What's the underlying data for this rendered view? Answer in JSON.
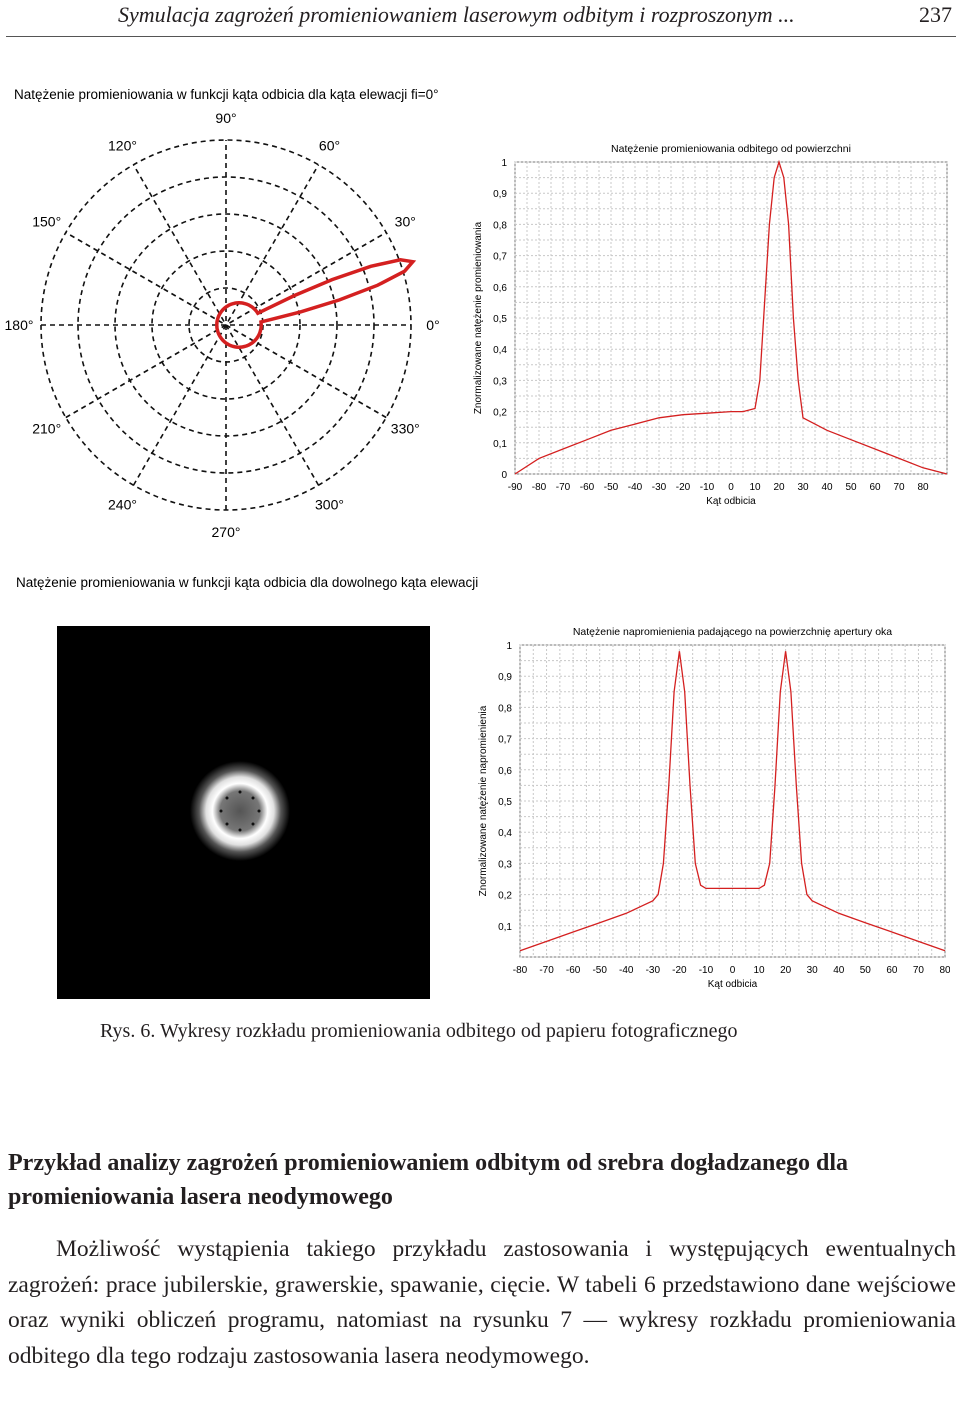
{
  "header": {
    "running_title": "Symulacja zagrożeń promieniowaniem laserowym odbitym i rozproszonym ...",
    "page_number": "237"
  },
  "figure": {
    "polar_caption": "Natężenie promieniowania w funkcji kąta odbicia dla kąta elewacji fi=0°",
    "polar_labels": [
      "90°",
      "60°",
      "30°",
      "0°",
      "330°",
      "300°",
      "270°",
      "240°",
      "210°",
      "180°",
      "150°",
      "120°"
    ],
    "elevation_caption": "Natężenie promieniowania w funkcji kąta odbicia dla dowolnego kąta elewacji",
    "caption": "Rys. 6. Wykresy rozkładu promieniowania odbitego od papieru fotograficznego"
  },
  "chart_data": [
    {
      "type": "polar",
      "angle_labels_deg": [
        90,
        60,
        30,
        0,
        330,
        300,
        270,
        240,
        210,
        180,
        150,
        120
      ],
      "description_series": "reflected intensity lobe at about 20° with small lobe near origin",
      "lobe": [
        [
          0,
          0.12
        ],
        [
          10,
          0.5
        ],
        [
          15,
          0.8
        ],
        [
          18,
          0.97
        ],
        [
          20,
          1.0
        ],
        [
          22,
          0.97
        ],
        [
          25,
          0.7
        ],
        [
          30,
          0.3
        ],
        [
          45,
          0.12
        ],
        [
          90,
          0.12
        ],
        [
          180,
          0.12
        ],
        [
          270,
          0.12
        ]
      ],
      "grid": true
    },
    {
      "type": "line",
      "title": "Natężenie promieniowania odbitego od powierzchni",
      "xlabel": "Kąt odbicia",
      "ylabel": "Znormalizowane natężenie promieniowania",
      "xticks": [
        "-90",
        "-80",
        "-70",
        "-60",
        "-50",
        "-40",
        "-30",
        "-20",
        "-10",
        "0",
        "10",
        "20",
        "30",
        "40",
        "50",
        "60",
        "70",
        "80"
      ],
      "yticks": [
        "0",
        "0,1",
        "0,2",
        "0,3",
        "0,4",
        "0,5",
        "0,6",
        "0,7",
        "0,8",
        "0,9",
        "1"
      ],
      "xlim": [
        -90,
        90
      ],
      "ylim": [
        0,
        1
      ],
      "grid": true,
      "x": [
        -90,
        -80,
        -70,
        -60,
        -50,
        -40,
        -30,
        -20,
        -10,
        0,
        5,
        10,
        12,
        14,
        16,
        18,
        20,
        22,
        24,
        26,
        28,
        30,
        40,
        50,
        60,
        70,
        80,
        90
      ],
      "y": [
        0.0,
        0.05,
        0.08,
        0.11,
        0.14,
        0.16,
        0.18,
        0.19,
        0.195,
        0.2,
        0.2,
        0.21,
        0.3,
        0.55,
        0.8,
        0.95,
        1.0,
        0.95,
        0.8,
        0.5,
        0.3,
        0.18,
        0.14,
        0.11,
        0.08,
        0.05,
        0.02,
        0.0
      ]
    },
    {
      "type": "heatmap",
      "description": "ring of intensity",
      "ring_radius_fraction": 0.06
    },
    {
      "type": "line",
      "title": "Natężenie napromienienia padającego na powierzchnię apertury oka",
      "xlabel": "Kąt odbicia",
      "ylabel": "Znormalizowane natężenie napromienienia",
      "xticks": [
        "-80",
        "-70",
        "-60",
        "-50",
        "-40",
        "-30",
        "-20",
        "-10",
        "0",
        "10",
        "20",
        "30",
        "40",
        "50",
        "60",
        "70",
        "80"
      ],
      "yticks": [
        "0,1",
        "0,2",
        "0,3",
        "0,4",
        "0,5",
        "0,6",
        "0,7",
        "0,8",
        "0,9",
        "1"
      ],
      "xlim": [
        -80,
        80
      ],
      "ylim": [
        0,
        1
      ],
      "grid": true,
      "x": [
        -80,
        -70,
        -60,
        -50,
        -40,
        -30,
        -28,
        -26,
        -24,
        -22,
        -20,
        -18,
        -16,
        -14,
        -12,
        -10,
        0,
        10,
        12,
        14,
        16,
        18,
        20,
        22,
        24,
        26,
        28,
        30,
        40,
        50,
        60,
        70,
        80
      ],
      "y": [
        0.02,
        0.05,
        0.08,
        0.11,
        0.14,
        0.18,
        0.2,
        0.3,
        0.55,
        0.85,
        0.98,
        0.85,
        0.55,
        0.3,
        0.23,
        0.22,
        0.22,
        0.22,
        0.23,
        0.3,
        0.55,
        0.85,
        0.98,
        0.85,
        0.55,
        0.3,
        0.2,
        0.18,
        0.14,
        0.11,
        0.08,
        0.05,
        0.02
      ]
    }
  ],
  "section": {
    "heading": "Przykład analizy zagrożeń promieniowaniem odbitym od srebra dogładzanego dla promieniowania lasera neodymowego",
    "paragraph": "Możliwość wystąpienia takiego przykładu zastosowania i występujących ewentualnych zagrożeń: prace jubilerskie, grawerskie, spawanie, cięcie. W tabeli 6 przedstawiono dane wejściowe oraz wyniki obliczeń programu, natomiast na rysunku 7 — wykresy rozkładu promieniowania odbitego dla tego rodzaju zastosowania lasera neodymowego."
  },
  "colors": {
    "curve": "#d42020",
    "grid": "#b0b0b0",
    "text": "#231f20"
  }
}
